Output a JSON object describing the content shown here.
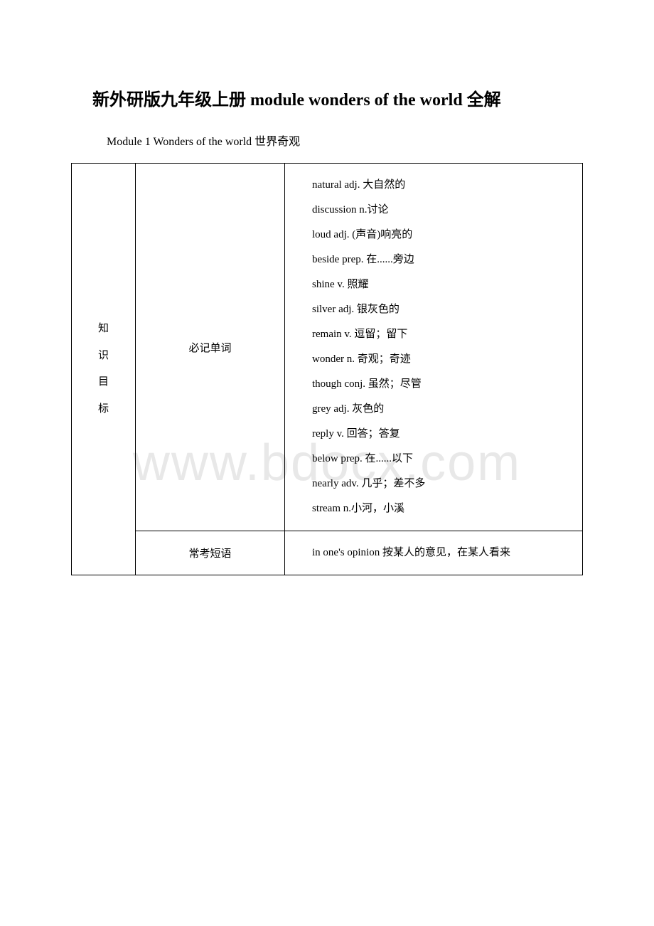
{
  "watermark": "www.bdocx.com",
  "title": "新外研版九年级上册 module wonders of the world 全解",
  "subtitle": "Module 1 Wonders of the world 世界奇观",
  "table": {
    "col1_chars": [
      "知",
      "识",
      "目",
      "标"
    ],
    "col2_row1": "必记单词",
    "col2_row2": "常考短语",
    "vocab_items": [
      "natural adj. 大自然的",
      "discussion n.讨论",
      "loud adj. (声音)响亮的",
      "beside prep. 在......旁边",
      "shine v. 照耀",
      "silver adj. 银灰色的",
      "remain v. 逗留；留下",
      "wonder n. 奇观；奇迹",
      "though conj. 虽然；尽管",
      "grey adj. 灰色的",
      "reply v. 回答；答复",
      "below prep. 在......以下",
      "nearly adv. 几乎；差不多",
      "stream n.小河，小溪"
    ],
    "phrase_item": "in one's opinion 按某人的意见，在某人看来"
  },
  "colors": {
    "background": "#ffffff",
    "text": "#000000",
    "border": "#000000",
    "watermark": "#e8e8e8"
  }
}
